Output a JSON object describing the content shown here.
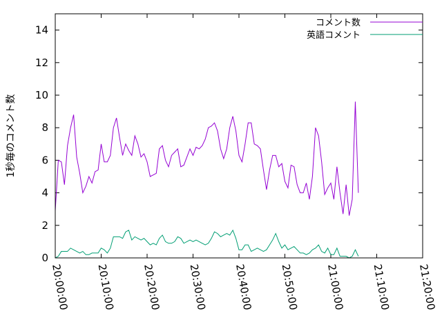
{
  "chart_data": {
    "type": "line",
    "title": "",
    "xlabel": "",
    "ylabel": "1秒毎のコメント数",
    "x_ticks": [
      "20:00:00",
      "20:10:00",
      "20:20:00",
      "20:30:00",
      "20:40:00",
      "20:50:00",
      "21:00:00",
      "21:10:00",
      "21:20:00"
    ],
    "y_ticks": [
      "0",
      "2",
      "4",
      "6",
      "8",
      "10",
      "12",
      "14"
    ],
    "xlim": [
      "20:00:00",
      "21:20:00"
    ],
    "ylim": [
      0,
      15
    ],
    "grid": false,
    "legend_position": "top-right",
    "series": [
      {
        "name": "コメント数",
        "color": "#9400d3",
        "points": [
          [
            "20:00:00",
            2.9
          ],
          [
            "20:00:40",
            6.0
          ],
          [
            "20:01:20",
            5.9
          ],
          [
            "20:02:00",
            4.5
          ],
          [
            "20:02:40",
            6.9
          ],
          [
            "20:03:20",
            8.0
          ],
          [
            "20:04:00",
            8.8
          ],
          [
            "20:04:40",
            6.2
          ],
          [
            "20:05:20",
            5.2
          ],
          [
            "20:06:00",
            4.0
          ],
          [
            "20:06:40",
            4.4
          ],
          [
            "20:07:20",
            5.0
          ],
          [
            "20:08:00",
            4.6
          ],
          [
            "20:08:40",
            5.3
          ],
          [
            "20:09:20",
            5.4
          ],
          [
            "20:10:00",
            7.0
          ],
          [
            "20:10:40",
            5.9
          ],
          [
            "20:11:20",
            5.9
          ],
          [
            "20:12:00",
            6.3
          ],
          [
            "20:12:40",
            8.0
          ],
          [
            "20:13:20",
            8.6
          ],
          [
            "20:14:00",
            7.4
          ],
          [
            "20:14:40",
            6.3
          ],
          [
            "20:15:20",
            7.0
          ],
          [
            "20:16:00",
            6.6
          ],
          [
            "20:16:40",
            6.3
          ],
          [
            "20:17:20",
            7.5
          ],
          [
            "20:18:00",
            7.0
          ],
          [
            "20:18:40",
            6.2
          ],
          [
            "20:19:20",
            6.4
          ],
          [
            "20:20:00",
            5.9
          ],
          [
            "20:20:40",
            5.0
          ],
          [
            "20:21:20",
            5.1
          ],
          [
            "20:22:00",
            5.2
          ],
          [
            "20:22:40",
            6.7
          ],
          [
            "20:23:20",
            6.9
          ],
          [
            "20:24:00",
            6.0
          ],
          [
            "20:24:40",
            5.6
          ],
          [
            "20:25:20",
            6.3
          ],
          [
            "20:26:00",
            6.5
          ],
          [
            "20:26:40",
            6.7
          ],
          [
            "20:27:20",
            5.6
          ],
          [
            "20:28:00",
            5.7
          ],
          [
            "20:28:40",
            6.2
          ],
          [
            "20:29:20",
            6.7
          ],
          [
            "20:30:00",
            6.3
          ],
          [
            "20:30:40",
            6.8
          ],
          [
            "20:31:20",
            6.7
          ],
          [
            "20:32:00",
            6.9
          ],
          [
            "20:32:40",
            7.3
          ],
          [
            "20:33:20",
            8.0
          ],
          [
            "20:34:00",
            8.1
          ],
          [
            "20:34:40",
            8.3
          ],
          [
            "20:35:20",
            7.8
          ],
          [
            "20:36:00",
            6.7
          ],
          [
            "20:36:40",
            6.1
          ],
          [
            "20:37:20",
            6.7
          ],
          [
            "20:38:00",
            8.0
          ],
          [
            "20:38:40",
            8.7
          ],
          [
            "20:39:20",
            7.8
          ],
          [
            "20:40:00",
            6.3
          ],
          [
            "20:40:40",
            5.9
          ],
          [
            "20:41:20",
            7.0
          ],
          [
            "20:42:00",
            8.3
          ],
          [
            "20:42:40",
            8.3
          ],
          [
            "20:43:20",
            7.0
          ],
          [
            "20:44:00",
            6.9
          ],
          [
            "20:44:40",
            6.7
          ],
          [
            "20:45:20",
            5.4
          ],
          [
            "20:46:00",
            4.2
          ],
          [
            "20:46:40",
            5.4
          ],
          [
            "20:47:20",
            6.3
          ],
          [
            "20:48:00",
            6.3
          ],
          [
            "20:48:40",
            5.6
          ],
          [
            "20:49:20",
            5.8
          ],
          [
            "20:50:00",
            4.7
          ],
          [
            "20:50:40",
            4.3
          ],
          [
            "20:51:20",
            5.7
          ],
          [
            "20:52:00",
            5.6
          ],
          [
            "20:52:40",
            4.5
          ],
          [
            "20:53:20",
            4.0
          ],
          [
            "20:54:00",
            4.0
          ],
          [
            "20:54:40",
            4.6
          ],
          [
            "20:55:20",
            3.6
          ],
          [
            "20:56:00",
            5.0
          ],
          [
            "20:56:40",
            8.0
          ],
          [
            "20:57:20",
            7.5
          ],
          [
            "20:58:00",
            5.9
          ],
          [
            "20:58:40",
            3.9
          ],
          [
            "20:59:20",
            4.3
          ],
          [
            "21:00:00",
            4.6
          ],
          [
            "21:00:40",
            3.6
          ],
          [
            "21:01:20",
            5.6
          ],
          [
            "21:02:00",
            4.0
          ],
          [
            "21:02:40",
            2.7
          ],
          [
            "21:03:20",
            4.5
          ],
          [
            "21:04:00",
            2.6
          ],
          [
            "21:04:40",
            3.6
          ],
          [
            "21:05:20",
            9.6
          ],
          [
            "21:06:00",
            4.0
          ]
        ]
      },
      {
        "name": "英語コメント",
        "color": "#009e73",
        "points": [
          [
            "20:00:00",
            0.0
          ],
          [
            "20:00:40",
            0.1
          ],
          [
            "20:01:20",
            0.4
          ],
          [
            "20:02:00",
            0.4
          ],
          [
            "20:02:40",
            0.4
          ],
          [
            "20:03:20",
            0.6
          ],
          [
            "20:04:00",
            0.5
          ],
          [
            "20:04:40",
            0.4
          ],
          [
            "20:05:20",
            0.3
          ],
          [
            "20:06:00",
            0.4
          ],
          [
            "20:06:40",
            0.2
          ],
          [
            "20:07:20",
            0.2
          ],
          [
            "20:08:00",
            0.3
          ],
          [
            "20:08:40",
            0.3
          ],
          [
            "20:09:20",
            0.3
          ],
          [
            "20:10:00",
            0.6
          ],
          [
            "20:10:40",
            0.5
          ],
          [
            "20:11:20",
            0.3
          ],
          [
            "20:12:00",
            0.6
          ],
          [
            "20:12:40",
            1.3
          ],
          [
            "20:13:20",
            1.3
          ],
          [
            "20:14:00",
            1.3
          ],
          [
            "20:14:40",
            1.2
          ],
          [
            "20:15:20",
            1.6
          ],
          [
            "20:16:00",
            1.7
          ],
          [
            "20:16:40",
            1.1
          ],
          [
            "20:17:20",
            1.3
          ],
          [
            "20:18:00",
            1.2
          ],
          [
            "20:18:40",
            1.1
          ],
          [
            "20:19:20",
            1.2
          ],
          [
            "20:20:00",
            1.0
          ],
          [
            "20:20:40",
            0.8
          ],
          [
            "20:21:20",
            0.9
          ],
          [
            "20:22:00",
            0.8
          ],
          [
            "20:22:40",
            1.2
          ],
          [
            "20:23:20",
            1.4
          ],
          [
            "20:24:00",
            1.0
          ],
          [
            "20:24:40",
            0.9
          ],
          [
            "20:25:20",
            0.9
          ],
          [
            "20:26:00",
            1.0
          ],
          [
            "20:26:40",
            1.3
          ],
          [
            "20:27:20",
            1.2
          ],
          [
            "20:28:00",
            0.9
          ],
          [
            "20:28:40",
            1.0
          ],
          [
            "20:29:20",
            1.1
          ],
          [
            "20:30:00",
            1.0
          ],
          [
            "20:30:40",
            1.1
          ],
          [
            "20:31:20",
            1.0
          ],
          [
            "20:32:00",
            0.9
          ],
          [
            "20:32:40",
            0.8
          ],
          [
            "20:33:20",
            0.9
          ],
          [
            "20:34:00",
            1.2
          ],
          [
            "20:34:40",
            1.6
          ],
          [
            "20:35:20",
            1.5
          ],
          [
            "20:36:00",
            1.3
          ],
          [
            "20:36:40",
            1.4
          ],
          [
            "20:37:20",
            1.5
          ],
          [
            "20:38:00",
            1.4
          ],
          [
            "20:38:40",
            1.7
          ],
          [
            "20:39:20",
            1.2
          ],
          [
            "20:40:00",
            0.5
          ],
          [
            "20:40:40",
            0.5
          ],
          [
            "20:41:20",
            0.8
          ],
          [
            "20:42:00",
            0.8
          ],
          [
            "20:42:40",
            0.4
          ],
          [
            "20:43:20",
            0.5
          ],
          [
            "20:44:00",
            0.6
          ],
          [
            "20:44:40",
            0.5
          ],
          [
            "20:45:20",
            0.4
          ],
          [
            "20:46:00",
            0.5
          ],
          [
            "20:46:40",
            0.8
          ],
          [
            "20:47:20",
            1.1
          ],
          [
            "20:48:00",
            1.5
          ],
          [
            "20:48:40",
            1.0
          ],
          [
            "20:49:20",
            0.6
          ],
          [
            "20:50:00",
            0.8
          ],
          [
            "20:50:40",
            0.5
          ],
          [
            "20:51:20",
            0.6
          ],
          [
            "20:52:00",
            0.7
          ],
          [
            "20:52:40",
            0.5
          ],
          [
            "20:53:20",
            0.3
          ],
          [
            "20:54:00",
            0.3
          ],
          [
            "20:54:40",
            0.2
          ],
          [
            "20:55:20",
            0.3
          ],
          [
            "20:56:00",
            0.5
          ],
          [
            "20:56:40",
            0.6
          ],
          [
            "20:57:20",
            0.8
          ],
          [
            "20:58:00",
            0.4
          ],
          [
            "20:58:40",
            0.3
          ],
          [
            "20:59:20",
            0.6
          ],
          [
            "21:00:00",
            0.2
          ],
          [
            "21:00:40",
            0.2
          ],
          [
            "21:01:20",
            0.6
          ],
          [
            "21:02:00",
            0.1
          ],
          [
            "21:02:40",
            0.1
          ],
          [
            "21:03:20",
            0.1
          ],
          [
            "21:04:00",
            0.0
          ],
          [
            "21:04:40",
            0.1
          ],
          [
            "21:05:20",
            0.5
          ],
          [
            "21:06:00",
            0.1
          ]
        ]
      }
    ]
  }
}
